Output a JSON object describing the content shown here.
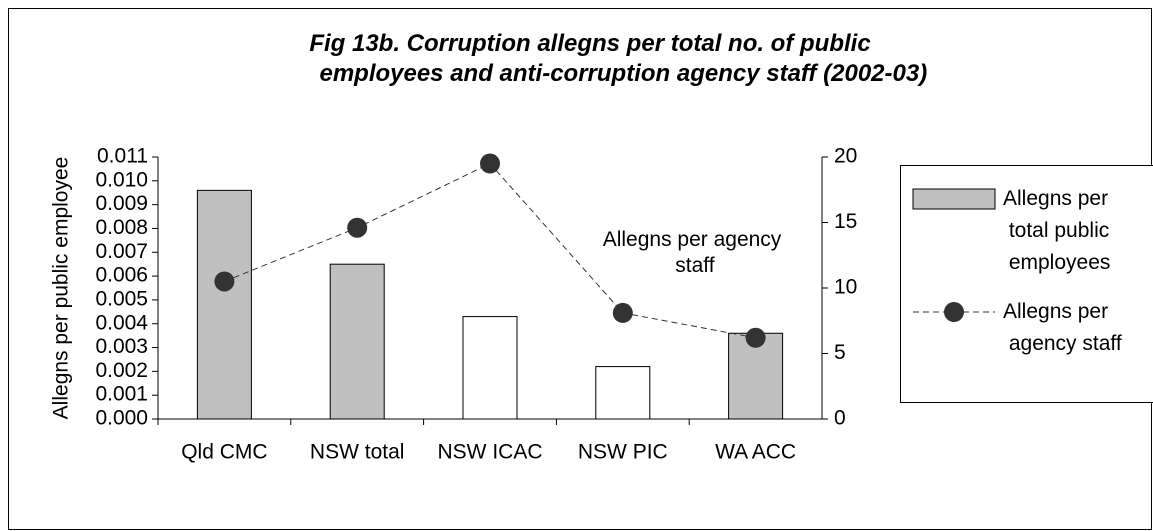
{
  "chart_data": {
    "type": "bar_line",
    "title": "Fig 13b. Corruption allegns per total no. of public employees and anti-corruption agency staff (2002-03)",
    "y_label": "Allegns per public employee",
    "categories": [
      "Qld CMC",
      "NSW total",
      "NSW ICAC",
      "NSW PIC",
      "WA ACC"
    ],
    "series": [
      {
        "name": "Allegns per total public employees",
        "type": "bar",
        "colors": [
          "#c0c0c0",
          "#c0c0c0",
          "#ffffff",
          "#ffffff",
          "#c0c0c0"
        ],
        "color": "#c0c0c0",
        "values": [
          0.0096,
          0.0065,
          0.0043,
          0.0022,
          0.0036
        ]
      },
      {
        "name": "Allegns per agency staff",
        "type": "line",
        "axis": "y2",
        "color": "#333333",
        "values": [
          10.5,
          14.6,
          19.5,
          8.1,
          6.2
        ]
      }
    ],
    "annotation": "Allegns per agency staff",
    "ylim": [
      0,
      0.011
    ],
    "yticks": [
      {
        "value": 0,
        "label": "0.000"
      },
      {
        "value": 0.001,
        "label": "0.001"
      },
      {
        "value": 0.002,
        "label": "0.002"
      },
      {
        "value": 0.003,
        "label": "0.003"
      },
      {
        "value": 0.004,
        "label": "0.004"
      },
      {
        "value": 0.005,
        "label": "0.005"
      },
      {
        "value": 0.006,
        "label": "0.006"
      },
      {
        "value": 0.007,
        "label": "0.007"
      },
      {
        "value": 0.008,
        "label": "0.008"
      },
      {
        "value": 0.009,
        "label": "0.009"
      },
      {
        "value": 0.01,
        "label": "0.010"
      },
      {
        "value": 0.011,
        "label": "0.011"
      }
    ],
    "y2lim": [
      0,
      20
    ],
    "y2ticks": [
      0,
      5,
      10,
      15,
      20
    ]
  }
}
